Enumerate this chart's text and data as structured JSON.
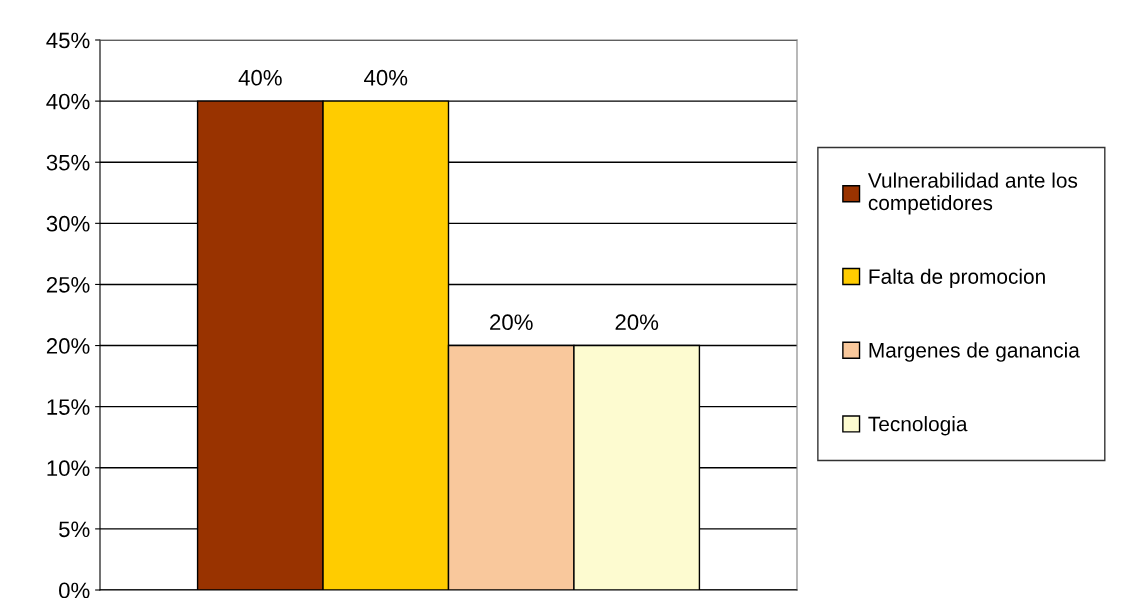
{
  "chart_data": {
    "type": "bar",
    "categories": [
      null
    ],
    "series": [
      {
        "name": "Vulnerabilidad ante los competidores",
        "color": "#993300",
        "values": [
          40
        ],
        "value_labels": [
          "40%"
        ]
      },
      {
        "name": "Falta de promocion",
        "color": "#ffcc00",
        "values": [
          40
        ],
        "value_labels": [
          "40%"
        ]
      },
      {
        "name": "Margenes de ganancia",
        "color": "#f9c89c",
        "values": [
          20
        ],
        "value_labels": [
          "20%"
        ]
      },
      {
        "name": "Tecnologia",
        "color": "#fdfbd0",
        "values": [
          20
        ],
        "value_labels": [
          "20%"
        ]
      }
    ],
    "ylim": [
      0,
      45
    ],
    "yticks": [
      {
        "value": 0,
        "label": "0%"
      },
      {
        "value": 5,
        "label": "5%"
      },
      {
        "value": 10,
        "label": "10%"
      },
      {
        "value": 15,
        "label": "15%"
      },
      {
        "value": 20,
        "label": "20%"
      },
      {
        "value": 25,
        "label": "25%"
      },
      {
        "value": 30,
        "label": "30%"
      },
      {
        "value": 35,
        "label": "35%"
      },
      {
        "value": 40,
        "label": "40%"
      },
      {
        "value": 45,
        "label": "45%"
      }
    ],
    "grid": "y",
    "legend": "right"
  }
}
